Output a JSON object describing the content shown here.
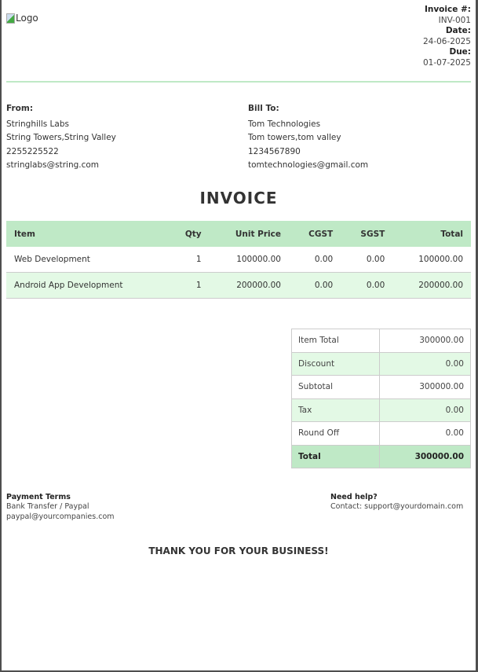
{
  "logo_alt": "Logo",
  "meta": {
    "invoice_label": "Invoice #:",
    "invoice_value": "INV-001",
    "date_label": "Date:",
    "date_value": "24-06-2025",
    "due_label": "Due:",
    "due_value": "01-07-2025"
  },
  "from": {
    "heading": "From:",
    "lines": [
      "Stringhills Labs",
      "String Towers,String Valley",
      "2255225522",
      "stringlabs@string.com"
    ]
  },
  "bill_to": {
    "heading": "Bill To:",
    "lines": [
      "Tom Technologies",
      "Tom towers,tom valley",
      "1234567890",
      "tomtechnologies@gmail.com"
    ]
  },
  "title": "INVOICE",
  "items": {
    "headers": [
      "Item",
      "Qty",
      "Unit Price",
      "CGST",
      "SGST",
      "Total"
    ],
    "rows": [
      [
        "Web Development",
        "1",
        "100000.00",
        "0.00",
        "0.00",
        "100000.00"
      ],
      [
        "Android App Development",
        "1",
        "200000.00",
        "0.00",
        "0.00",
        "200000.00"
      ]
    ]
  },
  "summary": [
    [
      "Item Total",
      "300000.00"
    ],
    [
      "Discount",
      "0.00"
    ],
    [
      "Subtotal",
      "300000.00"
    ],
    [
      "Tax",
      "0.00"
    ],
    [
      "Round Off",
      "0.00"
    ],
    [
      "Total",
      "300000.00"
    ]
  ],
  "payment": {
    "heading": "Payment Terms",
    "lines": [
      "Bank Transfer / Paypal",
      "paypal@yourcompanies.com"
    ]
  },
  "help": {
    "heading": "Need help?",
    "lines": [
      "Contact: support@yourdomain.com"
    ]
  },
  "thanks": "THANK YOU FOR YOUR BUSINESS!",
  "colors": {
    "accent": "#bfe9c6",
    "row_alt": "#e3f9e5"
  }
}
